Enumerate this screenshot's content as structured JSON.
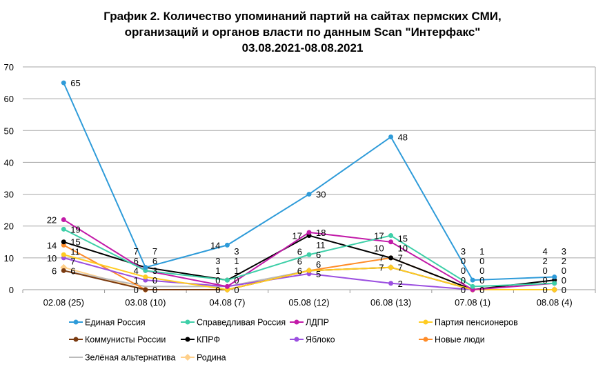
{
  "chart_data": {
    "type": "line",
    "title": [
      "График 2. Количество упоминаний партий на сайтах пермских СМИ,",
      "организаций и органов власти по данным Scan \"Интерфакс\"",
      "03.08.2021-08.08.2021"
    ],
    "xlabel": "",
    "ylabel": "",
    "ylim": [
      0,
      70
    ],
    "yticks": [
      0,
      10,
      20,
      30,
      40,
      50,
      60,
      70
    ],
    "grid": true,
    "legend_position": "bottom",
    "categories": [
      "02.08 (25)",
      "03.08 (10)",
      "04.08 (7)",
      "05.08 (12)",
      "06.08 (13)",
      "07.08 (1)",
      "08.08 (4)"
    ],
    "series": [
      {
        "name": "Единая Россия",
        "color": "#2E9BD9",
        "marker": "circle",
        "values": [
          65,
          7,
          14,
          30,
          48,
          3,
          4
        ]
      },
      {
        "name": "Справедливая Россия",
        "color": "#3ECFA8",
        "marker": "circle",
        "values": [
          19,
          6,
          3,
          11,
          17,
          1,
          2
        ]
      },
      {
        "name": "ЛДПР",
        "color": "#C21AA8",
        "marker": "circle",
        "values": [
          22,
          6,
          1,
          18,
          15,
          0,
          2
        ]
      },
      {
        "name": "Партия пенсионеров",
        "color": "#FFCC22",
        "marker": "circle",
        "values": [
          11,
          4,
          0,
          6,
          7,
          0,
          0
        ]
      },
      {
        "name": "Коммунисты России",
        "color": "#7A3A10",
        "marker": "circle",
        "values": [
          6,
          0,
          0,
          6,
          7,
          0,
          0
        ]
      },
      {
        "name": "КПРФ",
        "color": "#000000",
        "marker": "circle",
        "values": [
          15,
          7,
          3,
          17,
          10,
          0,
          3
        ]
      },
      {
        "name": "Яблоко",
        "color": "#9B4FE0",
        "marker": "circle",
        "values": [
          10,
          3,
          1,
          5,
          2,
          0,
          0
        ]
      },
      {
        "name": "Новые люди",
        "color": "#FF8C28",
        "marker": "circle",
        "values": [
          14,
          0,
          0,
          6,
          10,
          0,
          0
        ]
      },
      {
        "name": "Зелёная альтернатива",
        "color": "#BBBBBB",
        "marker": "none",
        "values": [
          6,
          1,
          1,
          6,
          7,
          0,
          0
        ]
      },
      {
        "name": "Родина",
        "color": "#FFD08A",
        "marker": "diamond",
        "values": [
          7,
          0,
          0,
          6,
          7,
          0,
          0
        ]
      }
    ]
  }
}
